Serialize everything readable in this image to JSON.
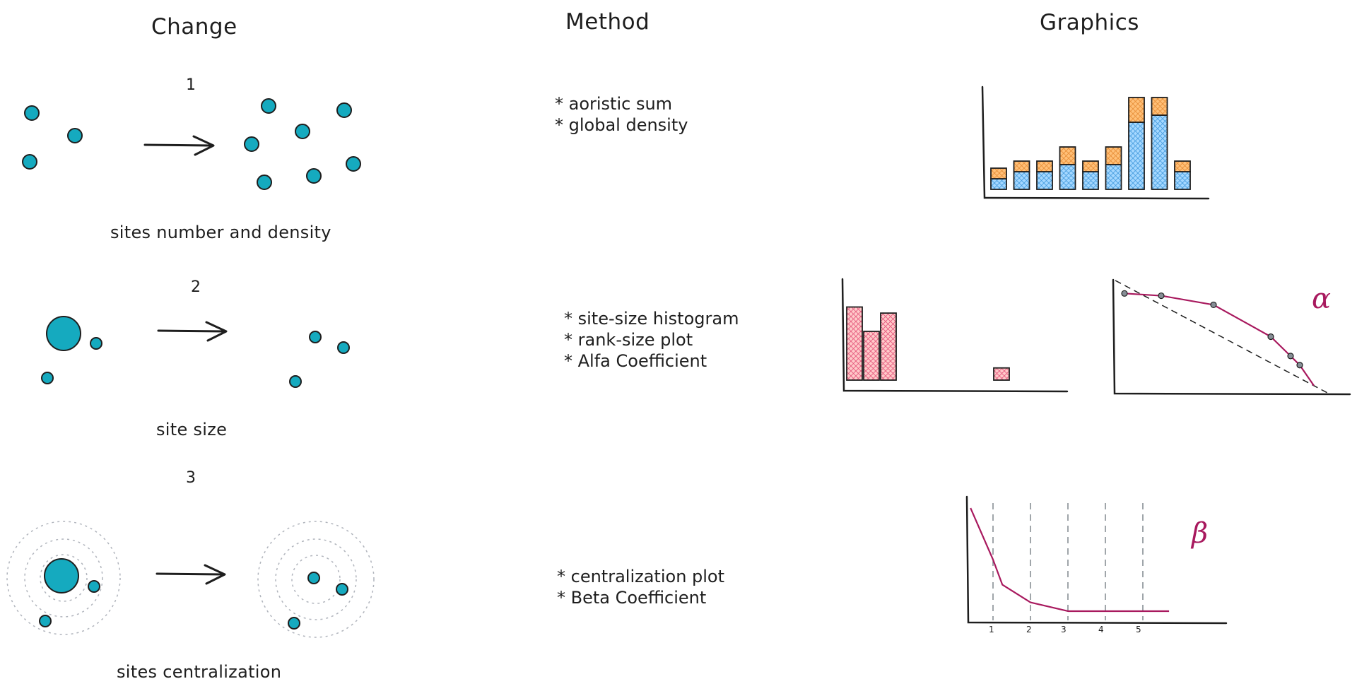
{
  "headers": {
    "change": "Change",
    "method": "Method",
    "graphics": "Graphics"
  },
  "rows": [
    {
      "number": "1",
      "caption": "sites number and density",
      "methods": [
        "* aoristic sum",
        "* global density"
      ]
    },
    {
      "number": "2",
      "caption": "site size",
      "methods": [
        "* site-size histogram",
        "* rank-size plot",
        "* Alfa Coefficient"
      ]
    },
    {
      "number": "3",
      "caption": "sites centralization",
      "methods": [
        "* centralization plot",
        "* Beta Coefficient"
      ]
    }
  ],
  "greek": {
    "alpha": "α",
    "beta": "β"
  },
  "colors": {
    "site": "#15aabf",
    "stroke": "#1e1e1e",
    "bar_blue": "#a5d8ff",
    "bar_orange": "#ffc078",
    "bar_pink": "#ffc9c9",
    "curve": "#a8195e",
    "ring": "#b0b4bc"
  },
  "chart_data": [
    {
      "type": "bar",
      "stacked": true,
      "values_blue": [
        1.5,
        2.5,
        2.5,
        3.5,
        2.5,
        3.5,
        9.5,
        10.5,
        2.5
      ],
      "values_orange": [
        1.5,
        1.5,
        1.5,
        2.5,
        1.5,
        2.5,
        3.5,
        2.5,
        1.5
      ],
      "ylim": [
        0,
        14
      ]
    },
    {
      "type": "bar",
      "values": [
        12,
        8,
        11,
        0,
        0,
        0,
        0,
        0,
        2
      ],
      "ylim": [
        0,
        16
      ]
    },
    {
      "type": "line",
      "x": [
        1,
        2,
        3,
        4,
        5,
        6,
        7
      ],
      "y": [
        0.88,
        0.86,
        0.78,
        0.5,
        0.33,
        0.25,
        0.07
      ],
      "reference_line": "dashed diagonal"
    },
    {
      "type": "line",
      "x_ticks": [
        "1",
        "2",
        "3",
        "4",
        "5"
      ],
      "x": [
        0.4,
        1.0,
        1.25,
        2.0,
        3.0,
        4.0,
        5.0,
        5.7
      ],
      "y": [
        0.91,
        0.5,
        0.3,
        0.16,
        0.09,
        0.09,
        0.09,
        0.09
      ],
      "vertical_gridlines": "dashed"
    }
  ]
}
